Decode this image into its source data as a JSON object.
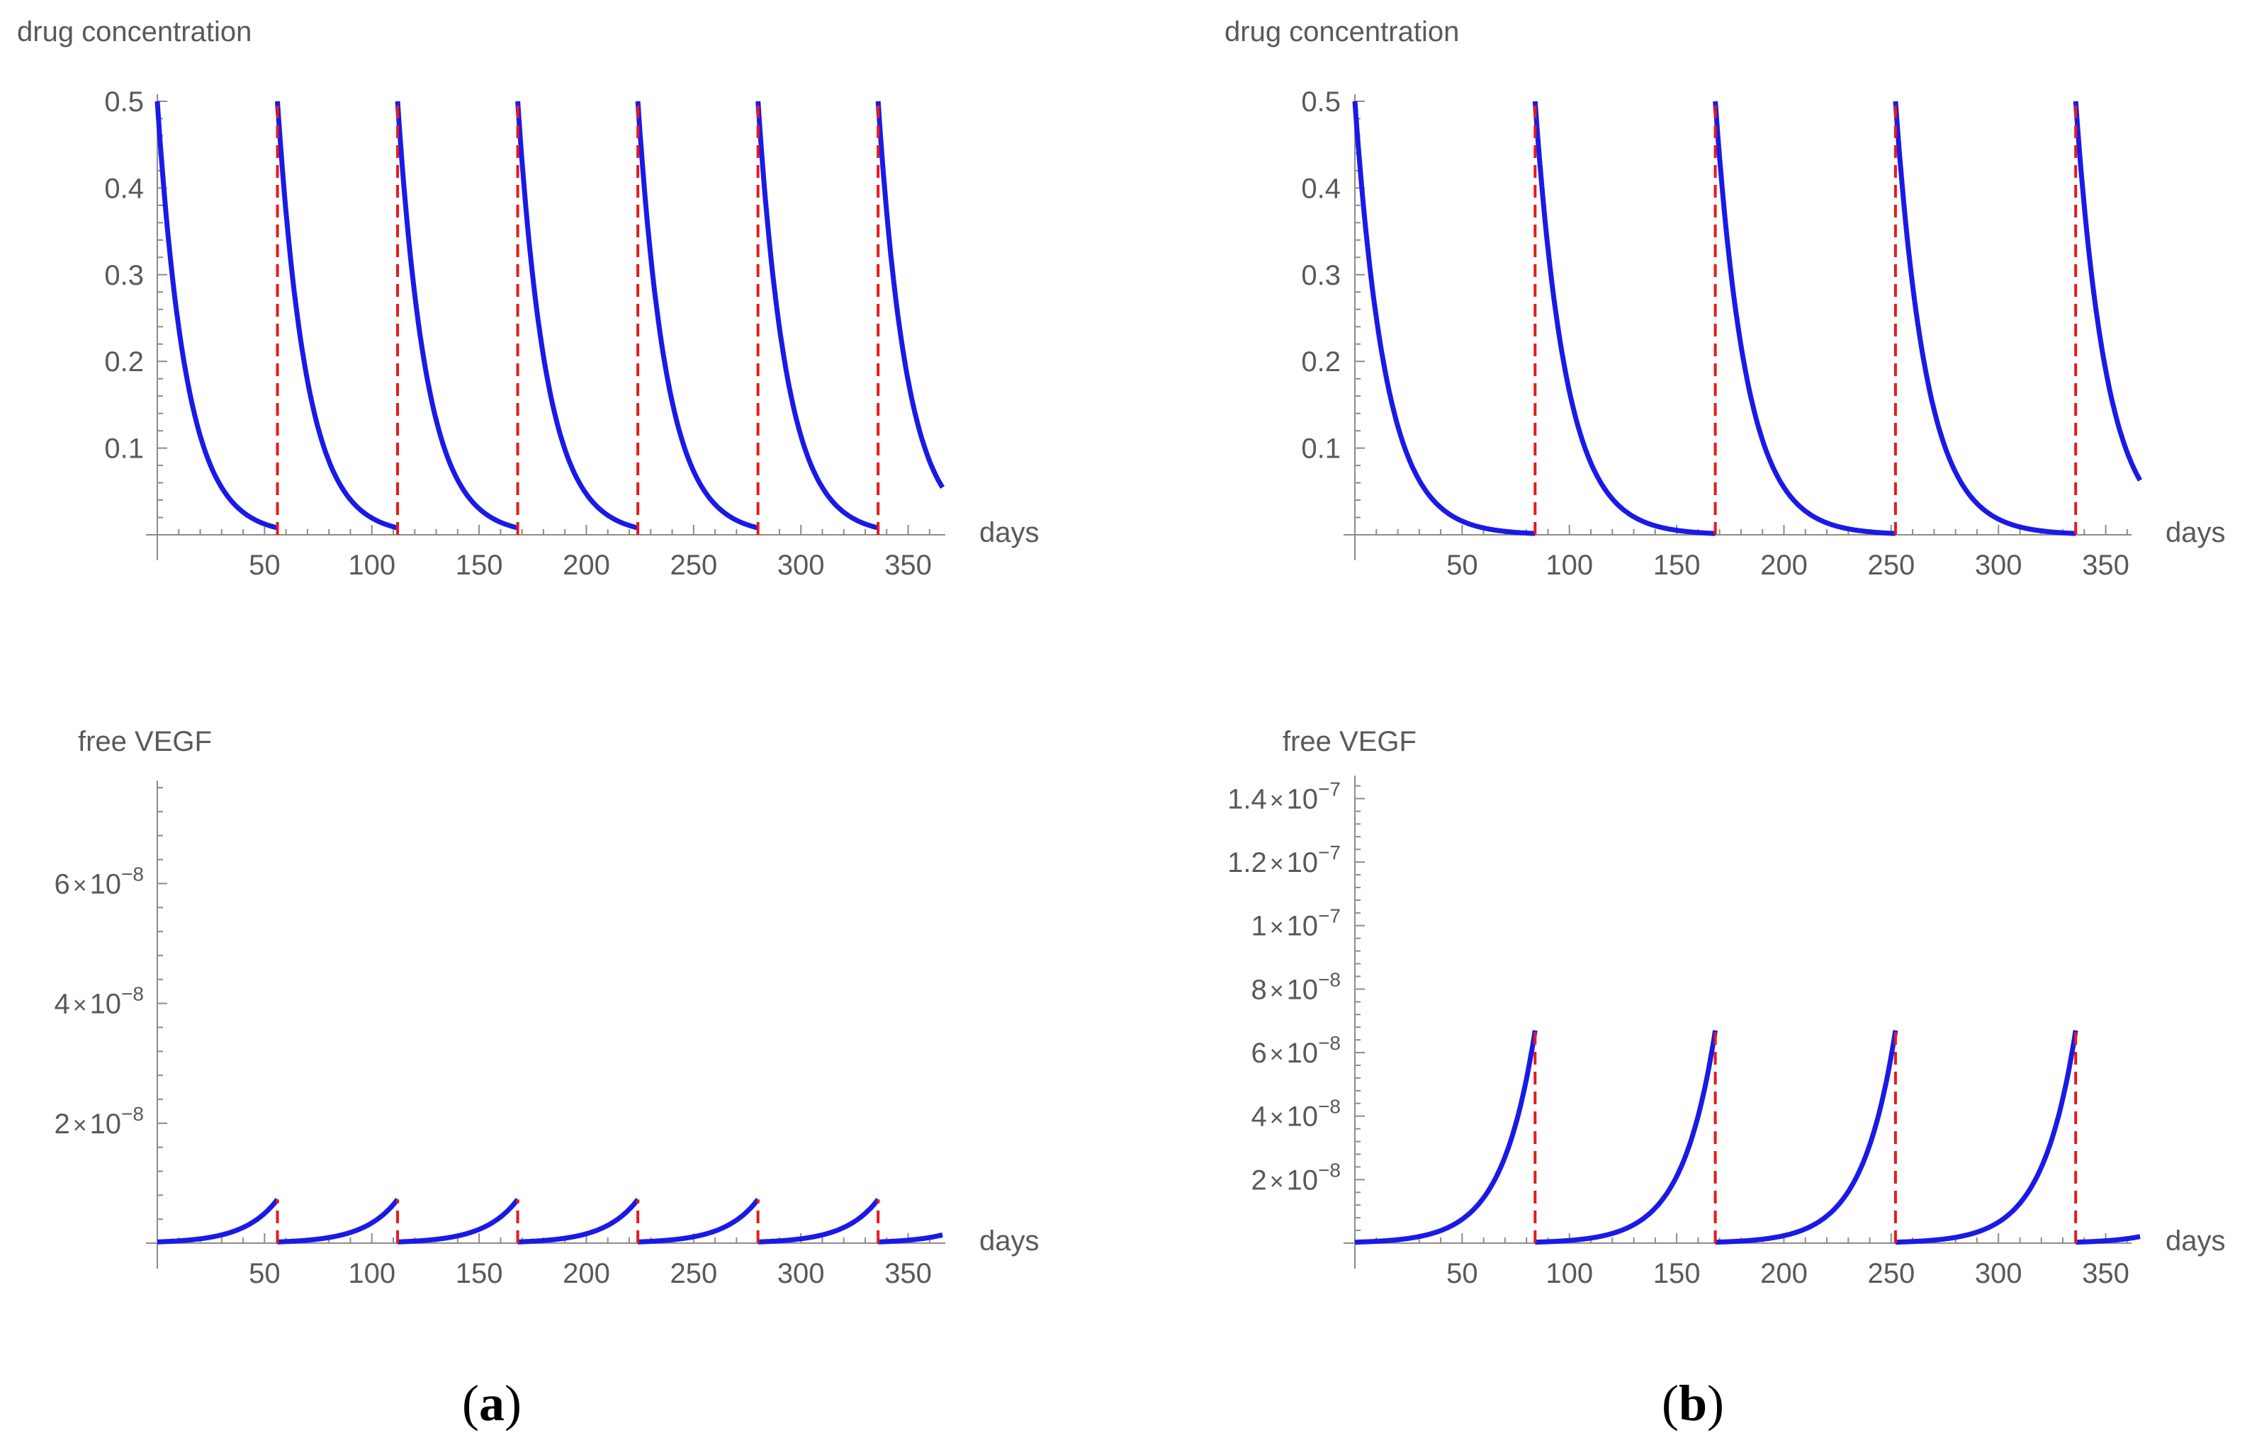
{
  "colors": {
    "curve": "#1a1ae6",
    "dose_line": "#e61a1a",
    "axis": "#8c8c8c",
    "text": "#595959"
  },
  "panel_labels": [
    {
      "open": "(",
      "letter": "a",
      "close": ")"
    },
    {
      "open": "(",
      "letter": "b",
      "close": ")"
    }
  ],
  "chart_data": [
    {
      "id": "a-top",
      "type": "line",
      "title": "",
      "xlabel": "days",
      "ylabel": "drug concentration",
      "xlim": [
        0,
        370
      ],
      "ylim": [
        0,
        0.5
      ],
      "xticks": [
        50,
        100,
        150,
        200,
        250,
        300,
        350
      ],
      "yticks": [
        0.1,
        0.2,
        0.3,
        0.4,
        0.5
      ],
      "ytick_labels": [
        "0.1",
        "0.2",
        "0.3",
        "0.4",
        "0.5"
      ],
      "model": "decay",
      "dose_interval_days": 56,
      "end_day": 366,
      "peak_value": 0.5,
      "trough_value": 0.008,
      "dose_days": [
        56,
        112,
        168,
        224,
        280,
        336
      ]
    },
    {
      "id": "b-top",
      "type": "line",
      "title": "",
      "xlabel": "days",
      "ylabel": "drug concentration",
      "xlim": [
        0,
        370
      ],
      "ylim": [
        0,
        0.5
      ],
      "xticks": [
        50,
        100,
        150,
        200,
        250,
        300,
        350
      ],
      "yticks": [
        0.1,
        0.2,
        0.3,
        0.4,
        0.5
      ],
      "ytick_labels": [
        "0.1",
        "0.2",
        "0.3",
        "0.4",
        "0.5"
      ],
      "model": "decay",
      "dose_interval_days": 84,
      "end_day": 366,
      "peak_value": 0.5,
      "trough_value": 0.0015,
      "dose_days": [
        84,
        168,
        252,
        336
      ]
    },
    {
      "id": "a-bottom",
      "type": "line",
      "title": "",
      "xlabel": "days",
      "ylabel": "free VEGF",
      "xlim": [
        0,
        370
      ],
      "ylim": [
        0,
        7.6e-08
      ],
      "xticks": [
        50,
        100,
        150,
        200,
        250,
        300,
        350
      ],
      "yticks": [
        2e-08,
        4e-08,
        6e-08
      ],
      "ytick_labels": [
        {
          "mantissa": "2.",
          "times": "×",
          "base": "10",
          "exponent": "−8"
        },
        {
          "mantissa": "4.",
          "times": "×",
          "base": "10",
          "exponent": "−8"
        },
        {
          "mantissa": "6.",
          "times": "×",
          "base": "10",
          "exponent": "−8"
        }
      ],
      "model": "growth",
      "dose_interval_days": 56,
      "end_day": 366,
      "peak_value": 7.3e-09,
      "trough_value": 2e-10,
      "dose_days": [
        56,
        112,
        168,
        224,
        280,
        336
      ]
    },
    {
      "id": "b-bottom",
      "type": "line",
      "title": "",
      "xlabel": "days",
      "ylabel": "free VEGF",
      "xlim": [
        0,
        370
      ],
      "ylim": [
        0,
        1.45e-07
      ],
      "xticks": [
        50,
        100,
        150,
        200,
        250,
        300,
        350
      ],
      "yticks": [
        2e-08,
        4e-08,
        6e-08,
        8e-08,
        1e-07,
        1.2e-07,
        1.4e-07
      ],
      "ytick_labels": [
        {
          "mantissa": "2.",
          "times": "×",
          "base": "10",
          "exponent": "−8"
        },
        {
          "mantissa": "4.",
          "times": "×",
          "base": "10",
          "exponent": "−8"
        },
        {
          "mantissa": "6.",
          "times": "×",
          "base": "10",
          "exponent": "−8"
        },
        {
          "mantissa": "8.",
          "times": "×",
          "base": "10",
          "exponent": "−8"
        },
        {
          "mantissa": "1.",
          "times": "×",
          "base": "10",
          "exponent": "−7"
        },
        {
          "mantissa": "1.2",
          "times": "×",
          "base": "10",
          "exponent": "−7"
        },
        {
          "mantissa": "1.4",
          "times": "×",
          "base": "10",
          "exponent": "−7"
        }
      ],
      "model": "growth",
      "dose_interval_days": 84,
      "end_day": 366,
      "peak_value": 6.7e-08,
      "trough_value": 3e-10,
      "dose_days": [
        84,
        168,
        252,
        336
      ]
    }
  ]
}
